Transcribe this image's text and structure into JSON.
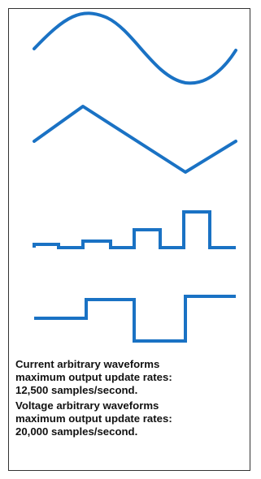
{
  "colors": {
    "waveform": "#1a72c4",
    "border": "#333333",
    "text": "#111111"
  },
  "waveforms": [
    {
      "id": "sine",
      "label": "sine-waveform"
    },
    {
      "id": "triangle",
      "label": "triangle-waveform"
    },
    {
      "id": "arbitrary-steps",
      "label": "arbitrary-step-waveform"
    },
    {
      "id": "pulse",
      "label": "pulse-waveform"
    }
  ],
  "captions": {
    "current": "Current arbitrary waveforms\nmaximum output update rates:\n12,500 samples/second.",
    "voltage": "Voltage arbitrary waveforms\nmaximum output update rates:\n20,000 samples/second."
  }
}
